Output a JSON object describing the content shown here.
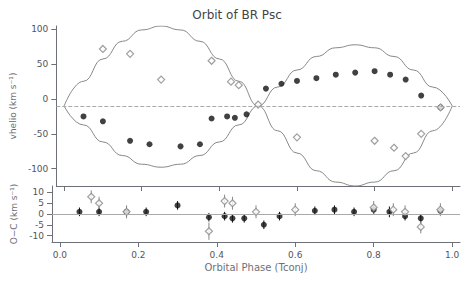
{
  "chart_data": [
    {
      "type": "line",
      "title": "Orbit of BR Psc",
      "ylabel": "vhelio (km s⁻¹)",
      "xlim": [
        -0.02,
        1.02
      ],
      "xticks": [
        {
          "value": 0,
          "label": "0.0"
        },
        0.2,
        0.4,
        0.6,
        0.8,
        {
          "value": 1.0,
          "label": "1.0"
        }
      ],
      "ylim": [
        -125,
        105
      ],
      "yticks": [
        -100,
        -50,
        0,
        50,
        100
      ],
      "tick_labels": "y",
      "grid": false,
      "reference_line": {
        "value": -10,
        "color": "#aaaaaa",
        "line_style": "dashed"
      },
      "series": [
        {
          "type": "line",
          "color": "#888888",
          "x": [
            0,
            0.05,
            0.1,
            0.15,
            0.2,
            0.25,
            0.3,
            0.35,
            0.4,
            0.45,
            0.5,
            0.55,
            0.6,
            0.65,
            0.7,
            0.75,
            0.8,
            0.85,
            0.9,
            0.95,
            1.0
          ],
          "values": [
            -10,
            -37.1935,
            -61.7251,
            -81.1935,
            -93.693,
            -98,
            -93.693,
            -81.1935,
            -61.7251,
            -37.1935,
            -10,
            17.1935,
            41.7251,
            61.1935,
            73.693,
            78,
            73.693,
            61.1935,
            41.7251,
            17.1935,
            -10
          ]
        },
        {
          "type": "line",
          "color": "#888888",
          "x": [
            0,
            0.05,
            0.1,
            0.15,
            0.2,
            0.25,
            0.3,
            0.35,
            0.4,
            0.45,
            0.5,
            0.55,
            0.6,
            0.65,
            0.7,
            0.75,
            0.8,
            0.85,
            0.9,
            0.95,
            1.0
          ],
          "values": [
            -10,
            25.537,
            57.5953,
            83.037,
            99.3715,
            105,
            99.3715,
            83.037,
            57.5953,
            25.537,
            -10,
            -45.537,
            -77.5953,
            -103.037,
            -119.3715,
            -125,
            -119.3715,
            -103.037,
            -77.5953,
            -45.537,
            -10
          ]
        },
        {
          "type": "scatter",
          "marker": "circle",
          "color": "#111111",
          "x": [
            0.05,
            0.1,
            0.17,
            0.22,
            0.3,
            0.35,
            0.38,
            0.42,
            0.44,
            0.47,
            0.52,
            0.56,
            0.6,
            0.65,
            0.7,
            0.75,
            0.8,
            0.84,
            0.88,
            0.92,
            0.97
          ],
          "values": [
            -25,
            -32,
            -60,
            -65,
            -68,
            -65,
            -28,
            -25,
            -27,
            -22,
            15,
            22,
            26,
            30,
            35,
            38,
            40,
            35,
            28,
            5,
            -12
          ]
        },
        {
          "type": "scatter",
          "marker": "hollow_diamond",
          "color": "#888888",
          "x": [
            0.1,
            0.17,
            0.25,
            0.38,
            0.43,
            0.45,
            0.5,
            0.6,
            0.8,
            0.85,
            0.88,
            0.92,
            0.97
          ],
          "values": [
            72,
            65,
            28,
            55,
            25,
            20,
            -8,
            -55,
            -60,
            -70,
            -82,
            -50,
            -12
          ]
        }
      ]
    },
    {
      "type": "scatter",
      "xlabel": "Orbital Phase (Tconj)",
      "ylabel": "O−C (km s⁻¹)",
      "xlim": [
        -0.02,
        1.02
      ],
      "xticks": [
        {
          "value": 0,
          "label": "0.0"
        },
        0.2,
        0.4,
        0.6,
        0.8,
        {
          "value": 1.0,
          "label": "1.0"
        }
      ],
      "ylim": [
        -13,
        13
      ],
      "yticks": [
        -10,
        -5,
        0,
        5,
        10
      ],
      "grid": false,
      "reference_line": {
        "value": 0,
        "color": "#aaaaaa",
        "line_style": "solid"
      },
      "series": [
        {
          "type": "scatter",
          "marker": "circle",
          "color": "#111111",
          "x": [
            0.05,
            0.1,
            0.17,
            0.22,
            0.3,
            0.38,
            0.42,
            0.44,
            0.47,
            0.52,
            0.56,
            0.65,
            0.7,
            0.75,
            0.8,
            0.84,
            0.88,
            0.92,
            0.97
          ],
          "values": [
            1.0,
            1.0,
            1.0,
            1.0,
            4.0,
            -1.5,
            -1.0,
            -2.0,
            -2.0,
            -5.0,
            -1.0,
            1.5,
            2.0,
            1.0,
            2.0,
            1.0,
            -1.0,
            -2.0,
            1.5
          ],
          "errors": [
            2.0,
            2.0,
            2.5,
            2.0,
            2.0,
            2.0,
            2.0,
            2.0,
            2.0,
            2.0,
            2.0,
            2.0,
            2.0,
            2.0,
            2.0,
            2.5,
            2.0,
            2.0,
            2.0
          ]
        },
        {
          "type": "scatter",
          "marker": "hollow_diamond",
          "color": "#888888",
          "x": [
            0.08,
            0.1,
            0.17,
            0.38,
            0.42,
            0.44,
            0.5,
            0.6,
            0.8,
            0.85,
            0.88,
            0.92,
            0.97
          ],
          "values": [
            8.0,
            5.0,
            1.0,
            -8.0,
            6.0,
            5.0,
            1.0,
            2.0,
            3.0,
            2.0,
            1.0,
            -6.0,
            2.0
          ],
          "errors": [
            3.0,
            3.0,
            3.0,
            4.0,
            3.0,
            3.0,
            3.0,
            3.0,
            3.0,
            3.0,
            3.0,
            3.0,
            3.0
          ]
        }
      ]
    }
  ]
}
